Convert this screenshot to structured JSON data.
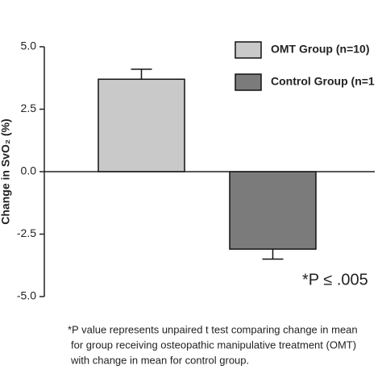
{
  "chart_data": {
    "type": "bar",
    "y_label": "Change in SvO₂ (%)",
    "categories": [
      null
    ],
    "series": [
      {
        "name": "OMT Group (n=10)",
        "color": "#c9c9c9",
        "values": [
          3.7
        ],
        "errors": [
          0.4
        ]
      },
      {
        "name": "Control Group (n=1",
        "color": "#7b7b7b",
        "values": [
          -3.1
        ],
        "errors": [
          0.4
        ]
      }
    ],
    "ylim": [
      -5,
      5
    ],
    "yticks": [
      {
        "value": 5,
        "label": "5.0"
      },
      2.5,
      {
        "value": 0,
        "label": "0.0"
      },
      -2.5,
      {
        "value": -5,
        "label": "-5.0"
      }
    ],
    "annotation": "*P ≤ .005",
    "footnote": [
      "*P value represents unpaired t test comparing change in mean",
      "for group receiving osteopathic manipulative treatment (OMT)",
      "with change in mean for control group."
    ],
    "legend": "top-right"
  }
}
